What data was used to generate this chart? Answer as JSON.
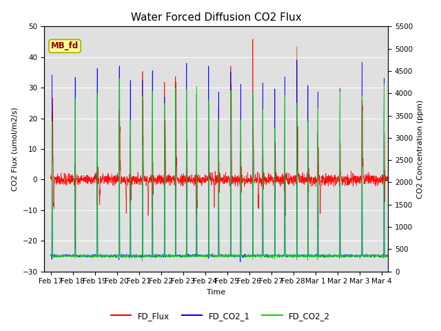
{
  "title": "Water Forced Diffusion CO2 Flux",
  "xlabel": "Time",
  "ylabel_left": "CO2 Flux (umol/m2/s)",
  "ylabel_right": "CO2 Concentration (ppm)",
  "ylim_left": [
    -30,
    50
  ],
  "ylim_right": [
    0,
    5500
  ],
  "yticks_left": [
    -30,
    -20,
    -10,
    0,
    10,
    20,
    30,
    40,
    50
  ],
  "yticks_right": [
    0,
    500,
    1000,
    1500,
    2000,
    2500,
    3000,
    3500,
    4000,
    4500,
    5000,
    5500
  ],
  "xtick_labels": [
    "Feb 17",
    "Feb 18",
    "Feb 19",
    "Feb 20",
    "Feb 21",
    "Feb 22",
    "Feb 23",
    "Feb 24",
    "Feb 25",
    "Feb 26",
    "Feb 27",
    "Feb 28",
    "Mar 1",
    "Mar 2",
    "Mar 3",
    "Mar 4"
  ],
  "annotation_text": "MB_fd",
  "bg_color": "#e0e0e0",
  "line_colors": {
    "FD_Flux": "#ff0000",
    "FD_CO2_1": "#0000ff",
    "FD_CO2_2": "#00dd00"
  },
  "n_days": 16,
  "pts_per_day": 144,
  "title_fontsize": 11,
  "axis_label_fontsize": 8,
  "tick_fontsize": 7.5
}
